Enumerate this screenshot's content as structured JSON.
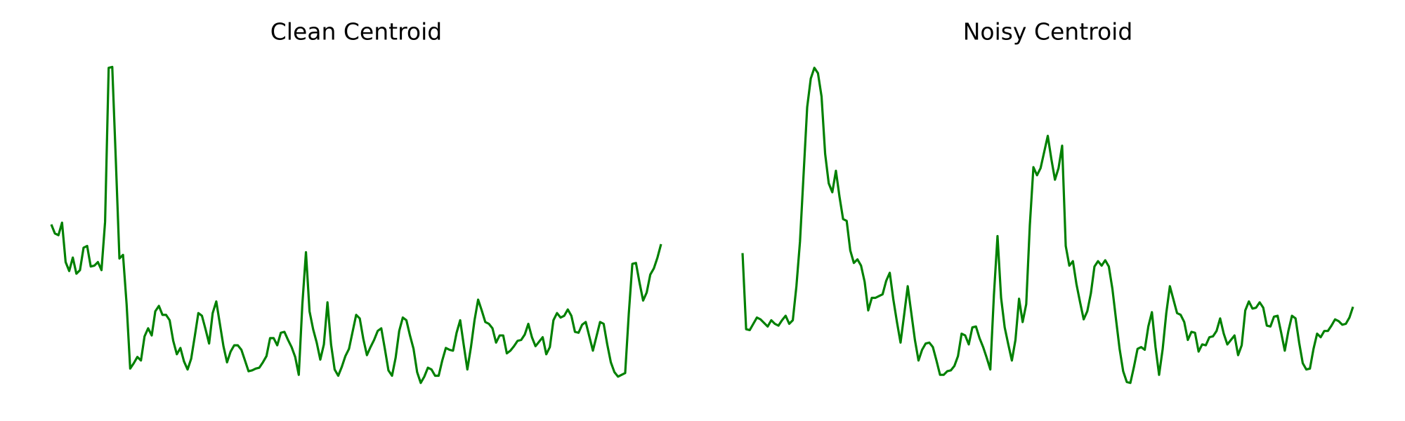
{
  "chart_data": [
    {
      "type": "line",
      "title": "Clean Centroid",
      "color": "#008000",
      "ylim": [
        0,
        370
      ],
      "values": [
        189,
        179,
        177,
        191,
        147,
        137,
        152,
        134,
        138,
        163,
        165,
        142,
        143,
        147,
        138,
        192,
        364,
        365,
        260,
        151,
        155,
        100,
        28,
        34,
        41,
        37,
        64,
        73,
        65,
        92,
        98,
        88,
        88,
        82,
        59,
        44,
        51,
        36,
        27,
        39,
        64,
        90,
        87,
        72,
        56,
        90,
        103,
        78,
        53,
        35,
        47,
        54,
        54,
        49,
        37,
        25,
        26,
        28,
        29,
        35,
        42,
        62,
        62,
        54,
        68,
        69,
        60,
        52,
        41,
        21,
        100,
        158,
        92,
        72,
        57,
        38,
        55,
        102,
        55,
        27,
        20,
        30,
        42,
        50,
        69,
        88,
        84,
        61,
        43,
        52,
        60,
        70,
        73,
        50,
        26,
        20,
        40,
        70,
        85,
        82,
        65,
        50,
        24,
        12,
        19,
        29,
        27,
        20,
        20,
        37,
        51,
        49,
        48,
        68,
        82,
        54,
        27,
        52,
        82,
        105,
        93,
        80,
        78,
        73,
        57,
        65,
        65,
        45,
        48,
        53,
        59,
        60,
        66,
        78,
        63,
        53,
        58,
        63,
        44,
        52,
        82,
        90,
        85,
        87,
        94,
        87,
        69,
        68,
        77,
        80,
        64,
        48,
        64,
        80,
        78,
        55,
        35,
        24,
        19,
        21,
        23,
        89,
        145,
        146,
        124,
        104,
        113,
        133,
        140,
        152,
        167
      ]
    },
    {
      "type": "line",
      "title": "Noisy Centroid",
      "color": "#008000",
      "ylim": [
        0,
        370
      ],
      "values": [
        157,
        72,
        71,
        78,
        85,
        83,
        79,
        75,
        82,
        78,
        76,
        82,
        87,
        78,
        82,
        120,
        170,
        245,
        320,
        352,
        364,
        358,
        332,
        268,
        235,
        225,
        249,
        220,
        195,
        193,
        160,
        146,
        150,
        143,
        125,
        93,
        107,
        107,
        109,
        111,
        126,
        135,
        105,
        80,
        57,
        88,
        120,
        90,
        60,
        37,
        49,
        56,
        57,
        52,
        37,
        21,
        21,
        25,
        26,
        31,
        42,
        67,
        65,
        55,
        74,
        75,
        62,
        52,
        40,
        27,
        110,
        176,
        107,
        74,
        55,
        37,
        60,
        106,
        80,
        100,
        188,
        253,
        244,
        252,
        270,
        288,
        262,
        239,
        252,
        277,
        165,
        143,
        148,
        122,
        102,
        83,
        92,
        112,
        142,
        148,
        143,
        149,
        142,
        117,
        83,
        50,
        25,
        13,
        12,
        30,
        50,
        52,
        49,
        75,
        91,
        52,
        21,
        50,
        90,
        120,
        105,
        90,
        88,
        80,
        60,
        69,
        68,
        47,
        55,
        54,
        63,
        64,
        70,
        84,
        67,
        55,
        60,
        65,
        43,
        54,
        93,
        103,
        95,
        96,
        102,
        96,
        76,
        75,
        86,
        87,
        68,
        48,
        70,
        87,
        84,
        57,
        34,
        27,
        28,
        50,
        67,
        63,
        70,
        70,
        76,
        83,
        81,
        77,
        78,
        85,
        97
      ]
    }
  ]
}
